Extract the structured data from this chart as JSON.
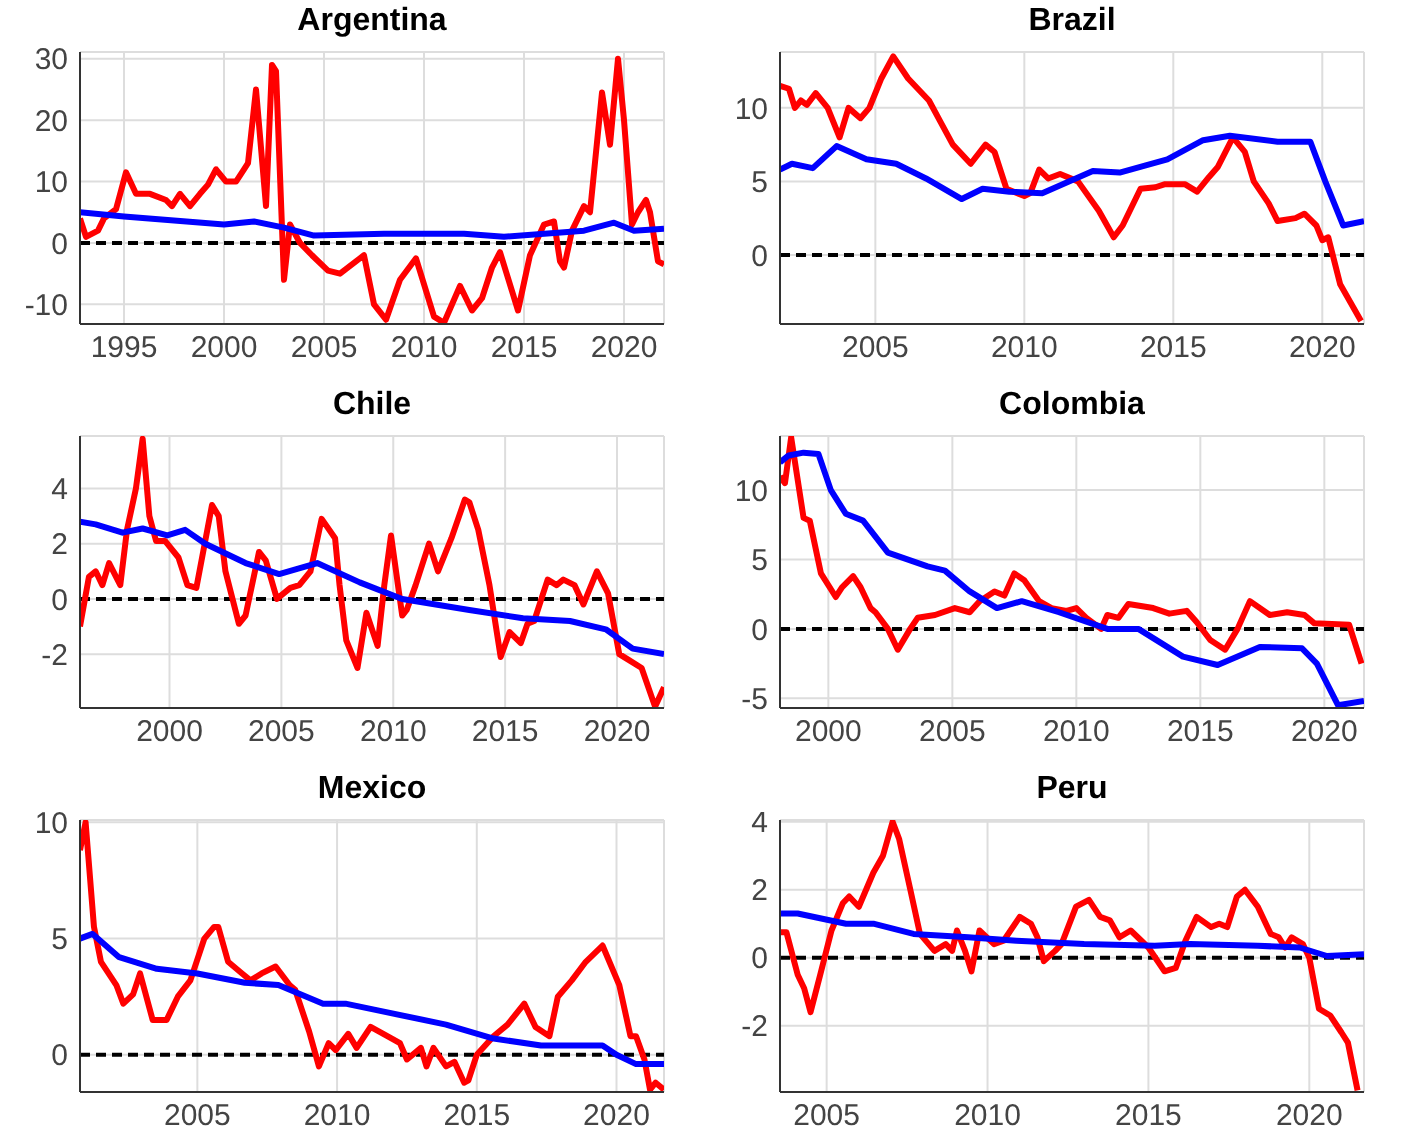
{
  "chart_data": [
    {
      "type": "line",
      "title": "Argentina",
      "xlim": [
        1992.8,
        2022
      ],
      "xticks": [
        1995,
        2000,
        2005,
        2010,
        2015,
        2020
      ],
      "ylim": [
        -13.2,
        31.1
      ],
      "yticks": [
        -10,
        0,
        10,
        20,
        30
      ],
      "grid": true,
      "ref_lines": [
        {
          "axis": "y",
          "value": 0,
          "color": "#000000",
          "line_style": "dashed"
        }
      ],
      "series": [
        {
          "color": "#ff0000",
          "x": [
            1992.8,
            1993.1,
            1993.7,
            1994,
            1994.6,
            1995.1,
            1995.6,
            1996.3,
            1997.1,
            1997.4,
            1997.8,
            1998.3,
            1998.8,
            1999.2,
            1999.6,
            2000.1,
            2000.6,
            2001,
            2001.2,
            2001.6,
            2002.1,
            2002.4,
            2002.6,
            2003,
            2003.3,
            2003.8,
            2004.4,
            2005.2,
            2005.8,
            2007,
            2007.5,
            2008.1,
            2008.8,
            2009.6,
            2010.5,
            2011,
            2011.8,
            2012.4,
            2012.9,
            2013.4,
            2013.8,
            2014.7,
            2015.3,
            2016,
            2016.5,
            2016.8,
            2017,
            2017.4,
            2017.7,
            2018,
            2018.3,
            2018.9,
            2019.3,
            2019.7,
            2020,
            2020.4,
            2020.7,
            2021.1,
            2021.3,
            2021.7,
            2022
          ],
          "values": [
            4,
            1,
            2,
            4,
            5.5,
            11.5,
            8,
            8,
            7,
            6,
            8,
            6,
            8,
            9.5,
            12,
            10,
            10,
            12,
            13,
            25,
            6,
            29,
            28,
            -6,
            3,
            0,
            -2,
            -4.5,
            -5,
            -2,
            -10,
            -12.5,
            -6,
            -2.5,
            -12,
            -13,
            -7,
            -11,
            -9,
            -4,
            -1.5,
            -11,
            -2,
            3,
            3.5,
            -3,
            -4,
            2,
            4,
            6,
            5,
            24.5,
            16,
            30,
            20,
            3,
            5,
            7,
            5,
            -3,
            -3.5
          ]
        },
        {
          "color": "#0000ff",
          "x": [
            1992.8,
            1995,
            2000,
            2001.5,
            2003,
            2004.5,
            2008,
            2012,
            2014,
            2018,
            2019.5,
            2020.5,
            2022
          ],
          "values": [
            5,
            4.3,
            3,
            3.5,
            2.5,
            1.2,
            1.5,
            1.5,
            1,
            2,
            3.3,
            2,
            2.3
          ]
        }
      ]
    },
    {
      "type": "line",
      "title": "Brazil",
      "xlim": [
        2001.8,
        2021.4
      ],
      "xticks": [
        2005,
        2010,
        2015,
        2020
      ],
      "ylim": [
        -4.7,
        13.8
      ],
      "yticks": [
        0,
        5,
        10
      ],
      "grid": true,
      "ref_lines": [
        {
          "axis": "y",
          "value": 0,
          "color": "#000000",
          "line_style": "dashed"
        }
      ],
      "series": [
        {
          "color": "#ff0000",
          "x": [
            2001.8,
            2002.1,
            2002.3,
            2002.5,
            2002.7,
            2003,
            2003.4,
            2003.8,
            2004.1,
            2004.5,
            2004.8,
            2005.2,
            2005.6,
            2006.1,
            2006.8,
            2007.2,
            2007.6,
            2008.2,
            2008.7,
            2009,
            2009.4,
            2010,
            2010.2,
            2010.5,
            2010.8,
            2011.2,
            2011.8,
            2012.5,
            2013,
            2013.3,
            2013.9,
            2014.4,
            2014.7,
            2015.4,
            2015.8,
            2016.2,
            2016.5,
            2017,
            2017.4,
            2017.7,
            2018.2,
            2018.5,
            2019.1,
            2019.4,
            2019.8,
            2020,
            2020.2,
            2020.6,
            2021.3
          ],
          "values": [
            11.5,
            11.3,
            10,
            10.5,
            10.2,
            11,
            10,
            8,
            10,
            9.3,
            10,
            12,
            13.5,
            12,
            10.5,
            9,
            7.5,
            6.2,
            7.5,
            7,
            4.5,
            4,
            4.2,
            5.8,
            5.2,
            5.5,
            5,
            3,
            1.2,
            2,
            4.5,
            4.6,
            4.8,
            4.8,
            4.3,
            5.3,
            6,
            8,
            7,
            5,
            3.5,
            2.3,
            2.5,
            2.8,
            2,
            1,
            1.2,
            -2,
            -4.5
          ]
        },
        {
          "color": "#0000ff",
          "x": [
            2001.8,
            2002.2,
            2002.9,
            2003.7,
            2004.7,
            2005.7,
            2006.7,
            2007.9,
            2008.6,
            2009.5,
            2010.6,
            2012.3,
            2013.2,
            2014.8,
            2016,
            2016.9,
            2018.5,
            2019.6,
            2020.1,
            2020.7,
            2021.4
          ],
          "values": [
            5.8,
            6.2,
            5.9,
            7.4,
            6.5,
            6.2,
            5.2,
            3.8,
            4.5,
            4.3,
            4.2,
            5.7,
            5.6,
            6.5,
            7.8,
            8.1,
            7.7,
            7.7,
            5,
            2,
            2.3
          ]
        }
      ]
    },
    {
      "type": "line",
      "title": "Chile",
      "xlim": [
        1996,
        2022.1
      ],
      "xticks": [
        2000,
        2005,
        2010,
        2015,
        2020
      ],
      "ylim": [
        -3.95,
        5.9
      ],
      "yticks": [
        -2,
        0,
        2,
        4
      ],
      "grid": true,
      "ref_lines": [
        {
          "axis": "y",
          "value": 0,
          "color": "#000000",
          "line_style": "dashed"
        }
      ],
      "series": [
        {
          "color": "#ff0000",
          "x": [
            1996,
            1996.4,
            1996.7,
            1997,
            1997.3,
            1997.8,
            1998.1,
            1998.5,
            1998.8,
            1999.1,
            1999.4,
            1999.8,
            2000.4,
            2000.8,
            2001.2,
            2001.9,
            2002.2,
            2002.5,
            2003.1,
            2003.4,
            2004,
            2004.3,
            2004.8,
            2005.4,
            2005.8,
            2006.3,
            2006.8,
            2007.4,
            2007.6,
            2007.9,
            2008.4,
            2008.8,
            2009.3,
            2009.6,
            2009.9,
            2010.4,
            2010.6,
            2011,
            2011.6,
            2012,
            2012.6,
            2013.2,
            2013.4,
            2013.8,
            2014.3,
            2014.8,
            2015.2,
            2015.7,
            2016,
            2016.3,
            2016.9,
            2017.3,
            2017.6,
            2018.1,
            2018.5,
            2019.1,
            2019.6,
            2020.1,
            2020.5,
            2021.1,
            2021.7,
            2022.1
          ],
          "values": [
            -1,
            0.8,
            1,
            0.5,
            1.3,
            0.5,
            2.5,
            4,
            5.8,
            3,
            2.1,
            2.1,
            1.5,
            0.5,
            0.4,
            3.4,
            3,
            1,
            -0.9,
            -0.6,
            1.7,
            1.4,
            0,
            0.4,
            0.5,
            1,
            2.9,
            2.2,
            0.5,
            -1.5,
            -2.5,
            -0.5,
            -1.7,
            0.5,
            2.3,
            -0.6,
            -0.4,
            0.5,
            2,
            1,
            2.2,
            3.6,
            3.5,
            2.5,
            0.5,
            -2.1,
            -1.2,
            -1.6,
            -0.9,
            -0.8,
            0.7,
            0.5,
            0.7,
            0.5,
            -0.2,
            1,
            0.2,
            -2,
            -2.2,
            -2.5,
            -3.9,
            -3.2
          ]
        },
        {
          "color": "#0000ff",
          "x": [
            1996,
            1996.7,
            1997.9,
            1998.8,
            1999.9,
            2000.7,
            2001.6,
            2003.4,
            2004.9,
            2006.6,
            2008.5,
            2010.4,
            2013.4,
            2015.8,
            2017.9,
            2019.5,
            2020.7,
            2022.1
          ],
          "values": [
            2.8,
            2.7,
            2.4,
            2.55,
            2.3,
            2.5,
            2,
            1.3,
            0.9,
            1.3,
            0.6,
            0,
            -0.4,
            -0.7,
            -0.8,
            -1.1,
            -1.8,
            -2
          ]
        }
      ]
    },
    {
      "type": "line",
      "title": "Colombia",
      "xlim": [
        1998.05,
        2021.6
      ],
      "xticks": [
        2000,
        2005,
        2010,
        2015,
        2020
      ],
      "ylim": [
        -5.7,
        13.9
      ],
      "yticks": [
        -5,
        0,
        5,
        10
      ],
      "grid": true,
      "ref_lines": [
        {
          "axis": "y",
          "value": 0,
          "color": "#000000",
          "line_style": "dashed"
        }
      ],
      "series": [
        {
          "color": "#ff0000",
          "x": [
            1998.05,
            1998.25,
            1998.5,
            1999,
            1999.25,
            1999.7,
            2000.3,
            2000.55,
            2001,
            2001.3,
            2001.7,
            2001.9,
            2002.4,
            2002.8,
            2003.3,
            2003.6,
            2004.3,
            2005.1,
            2005.7,
            2006.1,
            2006.7,
            2007.1,
            2007.5,
            2007.9,
            2008.5,
            2009,
            2009.6,
            2010,
            2010.4,
            2011,
            2011.25,
            2011.7,
            2012.1,
            2013.1,
            2013.75,
            2014.45,
            2014.85,
            2015.4,
            2016,
            2016.5,
            2017,
            2017.8,
            2018.5,
            2019.2,
            2019.6,
            2021,
            2021.5
          ],
          "values": [
            11,
            10.5,
            13.8,
            8,
            7.8,
            4,
            2.3,
            3,
            3.8,
            3,
            1.5,
            1.2,
            0,
            -1.5,
            0,
            0.8,
            1,
            1.5,
            1.2,
            2,
            2.7,
            2.4,
            4,
            3.5,
            2,
            1.5,
            1.3,
            1.5,
            0.8,
            0,
            1,
            0.8,
            1.8,
            1.5,
            1.1,
            1.3,
            0.5,
            -0.8,
            -1.5,
            0,
            2,
            1,
            1.2,
            1,
            0.4,
            0.3,
            -2.5
          ]
        },
        {
          "color": "#0000ff",
          "x": [
            1998.05,
            1998.4,
            1999,
            1999.6,
            2000.1,
            2000.7,
            2001.4,
            2002.4,
            2004,
            2004.7,
            2005.7,
            2006.8,
            2007.8,
            2009.3,
            2011.25,
            2012.5,
            2014.3,
            2015.7,
            2017.4,
            2019.1,
            2019.7,
            2020.55,
            2021.6
          ],
          "values": [
            12,
            12.5,
            12.7,
            12.6,
            10,
            8.3,
            7.8,
            5.5,
            4.5,
            4.2,
            2.7,
            1.5,
            2,
            1.2,
            0,
            0,
            -2,
            -2.6,
            -1.3,
            -1.4,
            -2.5,
            -5.5,
            -5.2
          ]
        }
      ]
    },
    {
      "type": "line",
      "title": "Mexico",
      "xlim": [
        2000.8,
        2021.7
      ],
      "xticks": [
        2005,
        2010,
        2015,
        2020
      ],
      "ylim": [
        -1.6,
        10.1
      ],
      "yticks": [
        0,
        5,
        10
      ],
      "grid": true,
      "ref_lines": [
        {
          "axis": "y",
          "value": 0,
          "color": "#000000",
          "line_style": "dashed"
        }
      ],
      "series": [
        {
          "color": "#ff0000",
          "x": [
            2000.8,
            2001,
            2001.3,
            2001.55,
            2002.1,
            2002.35,
            2002.7,
            2002.95,
            2003.4,
            2003.9,
            2004.3,
            2004.75,
            2005.25,
            2005.6,
            2005.75,
            2006.1,
            2006.6,
            2006.9,
            2007.3,
            2007.8,
            2008.3,
            2008.5,
            2009,
            2009.35,
            2009.7,
            2009.95,
            2010.4,
            2010.7,
            2011.2,
            2011.8,
            2012.25,
            2012.5,
            2013,
            2013.2,
            2013.45,
            2013.9,
            2014.2,
            2014.55,
            2014.7,
            2015,
            2015.6,
            2016.1,
            2016.7,
            2017.1,
            2017.6,
            2017.9,
            2018.4,
            2018.9,
            2019.5,
            2020.1,
            2020.5,
            2020.7,
            2021,
            2021.2,
            2021.4,
            2021.7
          ],
          "values": [
            8.8,
            10,
            5.5,
            4,
            3,
            2.2,
            2.6,
            3.5,
            1.5,
            1.5,
            2.5,
            3.2,
            5,
            5.5,
            5.5,
            4,
            3.5,
            3.2,
            3.5,
            3.8,
            3,
            2.8,
            1,
            -0.5,
            0.5,
            0.2,
            0.9,
            0.3,
            1.2,
            0.8,
            0.5,
            -0.2,
            0.3,
            -0.5,
            0.3,
            -0.5,
            -0.3,
            -1.2,
            -1.1,
            0,
            0.8,
            1.3,
            2.2,
            1.2,
            0.8,
            2.5,
            3.2,
            4,
            4.7,
            3,
            0.8,
            0.8,
            -0.2,
            -1.5,
            -1.2,
            -1.5
          ]
        },
        {
          "color": "#0000ff",
          "x": [
            2000.8,
            2001.25,
            2002.2,
            2003.55,
            2005,
            2006.7,
            2007.9,
            2009.5,
            2010.3,
            2011.5,
            2013.9,
            2015.6,
            2017.3,
            2019.5,
            2020,
            2020.7,
            2021.7
          ],
          "values": [
            5,
            5.2,
            4.2,
            3.7,
            3.5,
            3.1,
            3,
            2.2,
            2.2,
            1.9,
            1.3,
            0.7,
            0.4,
            0.4,
            0,
            -0.4,
            -0.4
          ]
        }
      ]
    },
    {
      "type": "line",
      "title": "Peru",
      "xlim": [
        2003.55,
        2021.7
      ],
      "xticks": [
        2005,
        2010,
        2015,
        2020
      ],
      "ylim": [
        -3.95,
        4.05
      ],
      "yticks": [
        -2,
        0,
        2,
        4
      ],
      "grid": true,
      "ref_lines": [
        {
          "axis": "y",
          "value": 0,
          "color": "#000000",
          "line_style": "dashed"
        }
      ],
      "series": [
        {
          "color": "#ff0000",
          "x": [
            2003.55,
            2003.75,
            2004.1,
            2004.3,
            2004.5,
            2004.8,
            2005.15,
            2005.5,
            2005.7,
            2006,
            2006.45,
            2006.75,
            2007.05,
            2007.25,
            2007.6,
            2007.9,
            2008.35,
            2008.7,
            2008.9,
            2009.05,
            2009.3,
            2009.5,
            2009.75,
            2010.2,
            2010.5,
            2011,
            2011.35,
            2011.55,
            2011.75,
            2012.1,
            2012.3,
            2012.75,
            2013.15,
            2013.5,
            2013.8,
            2014.1,
            2014.45,
            2015,
            2015.5,
            2015.85,
            2016.15,
            2016.5,
            2016.95,
            2017.2,
            2017.45,
            2017.75,
            2018,
            2018.4,
            2018.8,
            2019.05,
            2019.25,
            2019.45,
            2019.8,
            2020,
            2020.3,
            2020.65,
            2021,
            2021.2,
            2021.5
          ],
          "values": [
            0.75,
            0.75,
            -0.5,
            -0.9,
            -1.6,
            -0.5,
            0.8,
            1.6,
            1.8,
            1.5,
            2.5,
            3,
            4,
            3.5,
            2,
            0.7,
            0.2,
            0.4,
            0.2,
            0.8,
            0.2,
            -0.4,
            0.8,
            0.4,
            0.5,
            1.2,
            1,
            0.6,
            -0.1,
            0.2,
            0.4,
            1.5,
            1.7,
            1.2,
            1.1,
            0.6,
            0.8,
            0.3,
            -0.4,
            -0.3,
            0.5,
            1.2,
            0.9,
            1,
            0.9,
            1.8,
            2,
            1.5,
            0.7,
            0.6,
            0.3,
            0.6,
            0.4,
            0,
            -1.5,
            -1.7,
            -2.2,
            -2.5,
            -3.9
          ]
        },
        {
          "color": "#0000ff",
          "x": [
            2003.55,
            2004.1,
            2005.6,
            2006.45,
            2007.7,
            2009.4,
            2010.9,
            2013,
            2015.2,
            2016.3,
            2018.4,
            2019.7,
            2020.55,
            2021.7
          ],
          "values": [
            1.3,
            1.3,
            1,
            1,
            0.7,
            0.6,
            0.5,
            0.4,
            0.35,
            0.4,
            0.35,
            0.3,
            0.05,
            0.1
          ]
        }
      ]
    }
  ]
}
